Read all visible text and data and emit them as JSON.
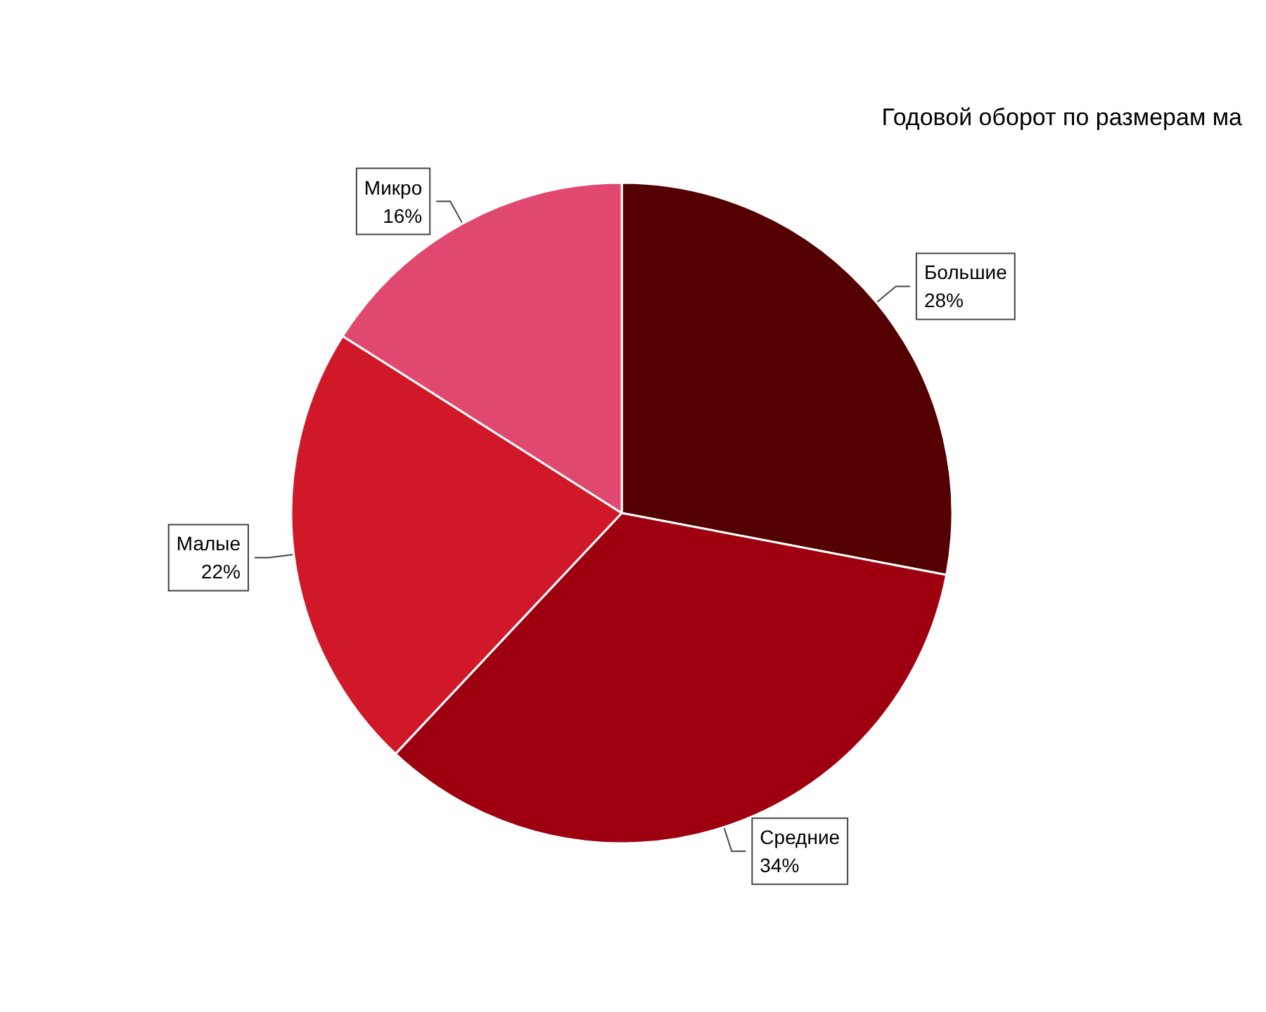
{
  "chart_data": {
    "type": "pie",
    "title": "Годовой оборот по размерам ма",
    "categories": [
      "Большие",
      "Средние",
      "Малые",
      "Микро"
    ],
    "values": [
      28,
      34,
      22,
      16
    ],
    "colors": [
      "#550000",
      "#9e0010",
      "#d01828",
      "#e04870"
    ],
    "value_labels": [
      "28%",
      "34%",
      "22%",
      "16%"
    ],
    "legend": false
  }
}
